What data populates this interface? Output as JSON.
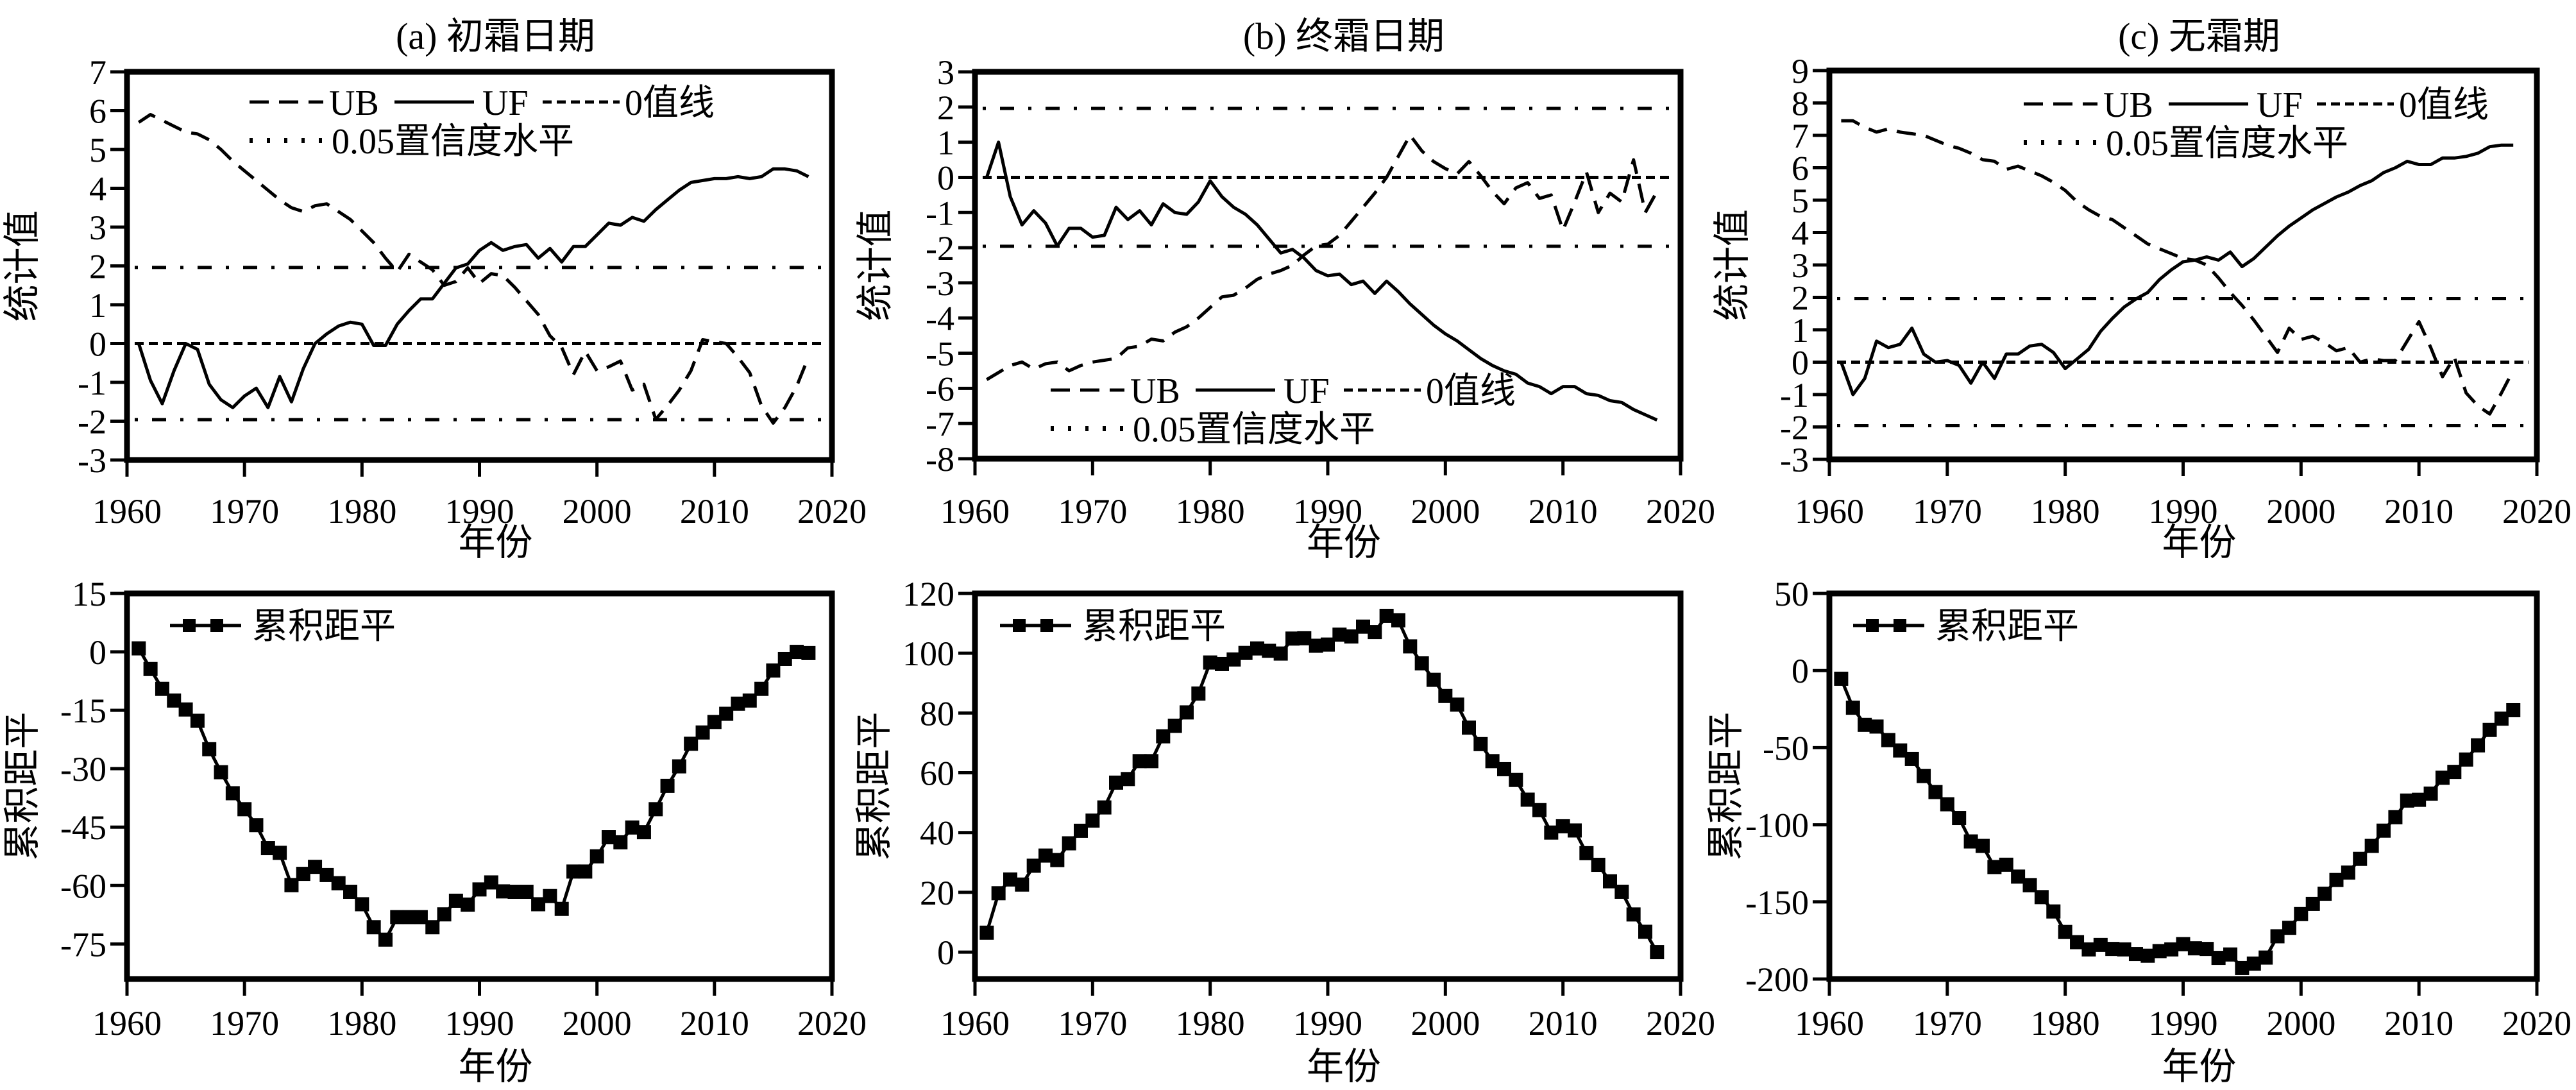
{
  "chart_data": [
    {
      "type": "line",
      "title": "(a) 初霜日期",
      "xlabel": "年份",
      "ylabel": "统计值",
      "xlim": [
        1960,
        2020
      ],
      "ylim": [
        -3,
        7
      ],
      "xticks": [
        1960,
        1970,
        1980,
        1990,
        2000,
        2010,
        2020
      ],
      "yticks": [
        -3,
        -2,
        -1,
        0,
        1,
        2,
        3,
        4,
        5,
        6,
        7
      ],
      "grid": false,
      "legend_position": "top",
      "x": [
        1961,
        1962,
        1963,
        1964,
        1965,
        1966,
        1967,
        1968,
        1969,
        1970,
        1971,
        1972,
        1973,
        1974,
        1975,
        1976,
        1977,
        1978,
        1979,
        1980,
        1981,
        1982,
        1983,
        1984,
        1985,
        1986,
        1987,
        1988,
        1989,
        1990,
        1991,
        1992,
        1993,
        1994,
        1995,
        1996,
        1997,
        1998,
        1999,
        2000,
        2001,
        2002,
        2003,
        2004,
        2005,
        2006,
        2007,
        2008,
        2009,
        2010,
        2011,
        2012,
        2013,
        2014,
        2015,
        2016,
        2017,
        2018
      ],
      "series": [
        {
          "name": "UB",
          "style": "dashed",
          "values": [
            5.7,
            5.9,
            5.75,
            5.6,
            5.45,
            5.4,
            5.25,
            5.0,
            4.7,
            4.45,
            4.2,
            3.95,
            3.7,
            3.5,
            3.4,
            3.55,
            3.6,
            3.4,
            3.2,
            2.9,
            2.6,
            2.2,
            1.85,
            2.3,
            2.1,
            1.9,
            1.5,
            1.6,
            1.95,
            1.55,
            1.8,
            1.75,
            1.45,
            1.1,
            0.75,
            0.2,
            -0.1,
            -0.8,
            -0.2,
            -0.7,
            -0.6,
            -0.45,
            -1.2,
            -1.05,
            -1.95,
            -1.6,
            -1.2,
            -0.7,
            0.1,
            0.05,
            0,
            -0.35,
            -0.75,
            -1.6,
            -2.05,
            -1.65,
            -1.1,
            -0.35
          ]
        },
        {
          "name": "UF",
          "style": "solid",
          "values": [
            0,
            -0.95,
            -1.55,
            -0.7,
            0,
            -0.15,
            -1.05,
            -1.45,
            -1.65,
            -1.35,
            -1.15,
            -1.65,
            -0.85,
            -1.5,
            -0.65,
            0,
            0.25,
            0.45,
            0.55,
            0.5,
            -0.05,
            -0.05,
            0.5,
            0.85,
            1.15,
            1.15,
            1.55,
            1.95,
            2.05,
            2.4,
            2.6,
            2.4,
            2.5,
            2.55,
            2.2,
            2.45,
            2.1,
            2.5,
            2.5,
            2.8,
            3.1,
            3.05,
            3.25,
            3.15,
            3.45,
            3.7,
            3.95,
            4.15,
            4.2,
            4.25,
            4.25,
            4.3,
            4.25,
            4.3,
            4.5,
            4.5,
            4.45,
            4.3
          ]
        }
      ],
      "reference_lines": [
        {
          "name": "0值线",
          "style": "short-dashed",
          "y": [
            0
          ]
        },
        {
          "name": "0.05置信度水平",
          "style": "dotted",
          "y": [
            1.96,
            -1.96
          ]
        }
      ]
    },
    {
      "type": "line",
      "title": "(b) 终霜日期",
      "xlabel": "年份",
      "ylabel": "统计值",
      "xlim": [
        1960,
        2020
      ],
      "ylim": [
        -8,
        3
      ],
      "xticks": [
        1960,
        1970,
        1980,
        1990,
        2000,
        2010,
        2020
      ],
      "yticks": [
        -8,
        -7,
        -6,
        -5,
        -4,
        -3,
        -2,
        -1,
        0,
        1,
        2,
        3
      ],
      "grid": false,
      "legend_position": "bottom",
      "x": [
        1961,
        1962,
        1963,
        1964,
        1965,
        1966,
        1967,
        1968,
        1969,
        1970,
        1971,
        1972,
        1973,
        1974,
        1975,
        1976,
        1977,
        1978,
        1979,
        1980,
        1981,
        1982,
        1983,
        1984,
        1985,
        1986,
        1987,
        1988,
        1989,
        1990,
        1991,
        1992,
        1993,
        1994,
        1995,
        1996,
        1997,
        1998,
        1999,
        2000,
        2001,
        2002,
        2003,
        2004,
        2005,
        2006,
        2007,
        2008,
        2009,
        2010,
        2011,
        2012,
        2013,
        2014,
        2015,
        2016,
        2017,
        2018
      ],
      "series": [
        {
          "name": "UB",
          "style": "dashed",
          "values": [
            -5.75,
            -5.55,
            -5.35,
            -5.25,
            -5.45,
            -5.3,
            -5.25,
            -5.5,
            -5.35,
            -5.25,
            -5.2,
            -5.15,
            -4.85,
            -4.8,
            -4.6,
            -4.65,
            -4.4,
            -4.25,
            -4.0,
            -3.7,
            -3.4,
            -3.35,
            -3.15,
            -2.9,
            -2.75,
            -2.65,
            -2.5,
            -2.2,
            -1.95,
            -1.9,
            -1.65,
            -1.25,
            -0.85,
            -0.45,
            0,
            0.6,
            1.2,
            0.75,
            0.45,
            0.25,
            0.1,
            0.45,
            0.05,
            -0.4,
            -0.75,
            -0.3,
            -0.15,
            -0.6,
            -0.5,
            -1.5,
            -0.7,
            0.15,
            -1.0,
            -0.45,
            -0.7,
            0.5,
            -1.0,
            -0.4
          ]
        },
        {
          "name": "UF",
          "style": "solid",
          "values": [
            0,
            1.0,
            -0.55,
            -1.35,
            -0.95,
            -1.3,
            -1.95,
            -1.45,
            -1.45,
            -1.7,
            -1.65,
            -0.85,
            -1.2,
            -0.95,
            -1.35,
            -0.75,
            -1.0,
            -1.05,
            -0.7,
            -0.1,
            -0.55,
            -0.85,
            -1.05,
            -1.35,
            -1.75,
            -2.15,
            -2.05,
            -2.3,
            -2.65,
            -2.8,
            -2.75,
            -3.05,
            -2.95,
            -3.3,
            -2.95,
            -3.25,
            -3.6,
            -3.9,
            -4.2,
            -4.45,
            -4.65,
            -4.9,
            -5.15,
            -5.35,
            -5.5,
            -5.6,
            -5.85,
            -5.95,
            -6.15,
            -5.95,
            -5.95,
            -6.15,
            -6.2,
            -6.35,
            -6.4,
            -6.6,
            -6.75,
            -6.9
          ]
        }
      ],
      "reference_lines": [
        {
          "name": "0值线",
          "style": "short-dashed",
          "y": [
            0
          ]
        },
        {
          "name": "0.05置信度水平",
          "style": "dotted",
          "y": [
            1.96,
            -1.96
          ]
        }
      ]
    },
    {
      "type": "line",
      "title": "(c) 无霜期",
      "xlabel": "年份",
      "ylabel": "统计值",
      "xlim": [
        1960,
        2020
      ],
      "ylim": [
        -3,
        9
      ],
      "xticks": [
        1960,
        1970,
        1980,
        1990,
        2000,
        2010,
        2020
      ],
      "yticks": [
        -3,
        -2,
        -1,
        0,
        1,
        2,
        3,
        4,
        5,
        6,
        7,
        8,
        9
      ],
      "grid": false,
      "legend_position": "top-right",
      "x": [
        1961,
        1962,
        1963,
        1964,
        1965,
        1966,
        1967,
        1968,
        1969,
        1970,
        1971,
        1972,
        1973,
        1974,
        1975,
        1976,
        1977,
        1978,
        1979,
        1980,
        1981,
        1982,
        1983,
        1984,
        1985,
        1986,
        1987,
        1988,
        1989,
        1990,
        1991,
        1992,
        1993,
        1994,
        1995,
        1996,
        1997,
        1998,
        1999,
        2000,
        2001,
        2002,
        2003,
        2004,
        2005,
        2006,
        2007,
        2008,
        2009,
        2010,
        2011,
        2012,
        2013,
        2014,
        2015,
        2016,
        2017,
        2018
      ],
      "series": [
        {
          "name": "UB",
          "style": "dashed",
          "values": [
            7.45,
            7.45,
            7.25,
            7.1,
            7.2,
            7.1,
            7.05,
            7.0,
            6.85,
            6.7,
            6.6,
            6.45,
            6.25,
            6.2,
            5.95,
            6.05,
            5.9,
            5.75,
            5.55,
            5.3,
            4.95,
            4.7,
            4.5,
            4.4,
            4.15,
            3.9,
            3.65,
            3.5,
            3.35,
            3.2,
            3.15,
            3.0,
            2.6,
            2.15,
            1.75,
            1.3,
            0.8,
            0.3,
            1.05,
            0.7,
            0.8,
            0.6,
            0.35,
            0.45,
            0,
            0.1,
            0.05,
            0.05,
            0.65,
            1.25,
            0.45,
            -0.45,
            0.15,
            -0.95,
            -1.35,
            -1.6,
            -0.95,
            -0.25
          ]
        },
        {
          "name": "UF",
          "style": "solid",
          "values": [
            0,
            -1.0,
            -0.5,
            0.65,
            0.45,
            0.55,
            1.05,
            0.25,
            0.0,
            0.05,
            -0.1,
            -0.65,
            0,
            -0.5,
            0.25,
            0.25,
            0.5,
            0.55,
            0.3,
            -0.2,
            0.1,
            0.4,
            0.95,
            1.35,
            1.7,
            1.95,
            2.15,
            2.55,
            2.85,
            3.1,
            3.15,
            3.25,
            3.15,
            3.4,
            2.95,
            3.2,
            3.55,
            3.9,
            4.2,
            4.45,
            4.7,
            4.9,
            5.1,
            5.25,
            5.45,
            5.6,
            5.85,
            6.0,
            6.2,
            6.1,
            6.1,
            6.3,
            6.3,
            6.35,
            6.45,
            6.65,
            6.7,
            6.7
          ]
        }
      ],
      "reference_lines": [
        {
          "name": "0值线",
          "style": "short-dashed",
          "y": [
            0
          ]
        },
        {
          "name": "0.05置信度水平",
          "style": "dotted",
          "y": [
            1.96,
            -1.96
          ]
        }
      ]
    },
    {
      "type": "line",
      "title": "",
      "xlabel": "年份",
      "ylabel": "累积距平",
      "xlim": [
        1960,
        2020
      ],
      "ylim": [
        -84,
        15
      ],
      "xticks": [
        1960,
        1970,
        1980,
        1990,
        2000,
        2010,
        2020
      ],
      "yticks": [
        -75,
        -60,
        -45,
        -30,
        -15,
        0,
        15
      ],
      "grid": false,
      "legend_position": "top-left",
      "x": [
        1961,
        1962,
        1963,
        1964,
        1965,
        1966,
        1967,
        1968,
        1969,
        1970,
        1971,
        1972,
        1973,
        1974,
        1975,
        1976,
        1977,
        1978,
        1979,
        1980,
        1981,
        1982,
        1983,
        1984,
        1985,
        1986,
        1987,
        1988,
        1989,
        1990,
        1991,
        1992,
        1993,
        1994,
        1995,
        1996,
        1997,
        1998,
        1999,
        2000,
        2001,
        2002,
        2003,
        2004,
        2005,
        2006,
        2007,
        2008,
        2009,
        2010,
        2011,
        2012,
        2013,
        2014,
        2015,
        2016,
        2017,
        2018
      ],
      "series": [
        {
          "name": "累积距平",
          "style": "line-square-markers",
          "values": [
            0.9,
            -4.4,
            -9.5,
            -12.5,
            -14.8,
            -17.7,
            -25,
            -30.9,
            -36.3,
            -40.4,
            -44.5,
            -50.4,
            -51.6,
            -59.9,
            -57,
            -55.2,
            -57.3,
            -59.4,
            -61.6,
            -64.8,
            -70.7,
            -73.9,
            -68.1,
            -68.1,
            -68.1,
            -70.7,
            -67.4,
            -63.9,
            -64.9,
            -61,
            -59.2,
            -61.5,
            -61.6,
            -61.6,
            -64.8,
            -62.7,
            -66,
            -56.4,
            -56.4,
            -52.5,
            -47.6,
            -48.9,
            -45.1,
            -46.3,
            -40.4,
            -34.4,
            -29.4,
            -23.6,
            -20.7,
            -18,
            -15.9,
            -13.3,
            -12.5,
            -9.5,
            -4.8,
            -1.8,
            0,
            -0.3
          ]
        }
      ]
    },
    {
      "type": "line",
      "title": "",
      "xlabel": "年份",
      "ylabel": "累积距平",
      "xlim": [
        1960,
        2020
      ],
      "ylim": [
        -9,
        120
      ],
      "xticks": [
        1960,
        1970,
        1980,
        1990,
        2000,
        2010,
        2020
      ],
      "yticks": [
        0,
        20,
        40,
        60,
        80,
        100,
        120
      ],
      "grid": false,
      "legend_position": "top-left",
      "x": [
        1961,
        1962,
        1963,
        1964,
        1965,
        1966,
        1967,
        1968,
        1969,
        1970,
        1971,
        1972,
        1973,
        1974,
        1975,
        1976,
        1977,
        1978,
        1979,
        1980,
        1981,
        1982,
        1983,
        1984,
        1985,
        1986,
        1987,
        1988,
        1989,
        1990,
        1991,
        1992,
        1993,
        1994,
        1995,
        1996,
        1997,
        1998,
        1999,
        2000,
        2001,
        2002,
        2003,
        2004,
        2005,
        2006,
        2007,
        2008,
        2009,
        2010,
        2011,
        2012,
        2013,
        2014,
        2015,
        2016,
        2017,
        2018
      ],
      "series": [
        {
          "name": "累积距平",
          "style": "line-square-markers",
          "values": [
            6.5,
            19.7,
            24.3,
            22.6,
            28.9,
            32.3,
            30.8,
            36.4,
            40.6,
            44,
            48.4,
            56.7,
            57.9,
            63.9,
            63.9,
            72.2,
            75.7,
            80.2,
            86.5,
            96.9,
            96.4,
            97.9,
            100.1,
            101.6,
            100.8,
            99.9,
            104.9,
            105,
            102.5,
            102.9,
            106.2,
            105.6,
            108.9,
            107.1,
            112.5,
            111,
            102.3,
            96.6,
            91.1,
            85.7,
            82.8,
            75.1,
            69.6,
            63.9,
            61.2,
            57.6,
            51,
            47.5,
            40,
            42.1,
            40.7,
            33.1,
            29.2,
            23.7,
            20.2,
            12.6,
            6.8,
            0
          ]
        }
      ]
    },
    {
      "type": "line",
      "title": "",
      "xlabel": "年份",
      "ylabel": "累积距平",
      "xlim": [
        1960,
        2020
      ],
      "ylim": [
        -200,
        50
      ],
      "xticks": [
        1960,
        1970,
        1980,
        1990,
        2000,
        2010,
        2020
      ],
      "yticks": [
        -200,
        -150,
        -100,
        -50,
        0,
        50
      ],
      "grid": false,
      "legend_position": "top-left",
      "x": [
        1961,
        1962,
        1963,
        1964,
        1965,
        1966,
        1967,
        1968,
        1969,
        1970,
        1971,
        1972,
        1973,
        1974,
        1975,
        1976,
        1977,
        1978,
        1979,
        1980,
        1981,
        1982,
        1983,
        1984,
        1985,
        1986,
        1987,
        1988,
        1989,
        1990,
        1991,
        1992,
        1993,
        1994,
        1995,
        1996,
        1997,
        1998,
        1999,
        2000,
        2001,
        2002,
        2003,
        2004,
        2005,
        2006,
        2007,
        2008,
        2009,
        2010,
        2011,
        2012,
        2013,
        2014,
        2015,
        2016,
        2017,
        2018
      ],
      "series": [
        {
          "name": "累积距平",
          "style": "line-square-markers",
          "values": [
            -5.3,
            -24.1,
            -35.2,
            -36.3,
            -45.1,
            -51.8,
            -57.3,
            -68.4,
            -78.8,
            -86.7,
            -95.6,
            -110.8,
            -113.7,
            -127.4,
            -125.9,
            -133.6,
            -139.2,
            -146.9,
            -156.2,
            -169.5,
            -176.1,
            -180.8,
            -177.9,
            -180.5,
            -180.8,
            -183.8,
            -184.9,
            -181.9,
            -180.8,
            -177.4,
            -180.1,
            -180.5,
            -186.3,
            -184.1,
            -192.9,
            -190,
            -186.1,
            -172.3,
            -166.8,
            -157.9,
            -151.3,
            -144.7,
            -135.8,
            -131,
            -122.1,
            -113.7,
            -103.8,
            -95.1,
            -84.3,
            -83.8,
            -79.8,
            -69.5,
            -65.7,
            -57.7,
            -48.5,
            -38.5,
            -31.2,
            -25.7
          ]
        }
      ]
    }
  ]
}
